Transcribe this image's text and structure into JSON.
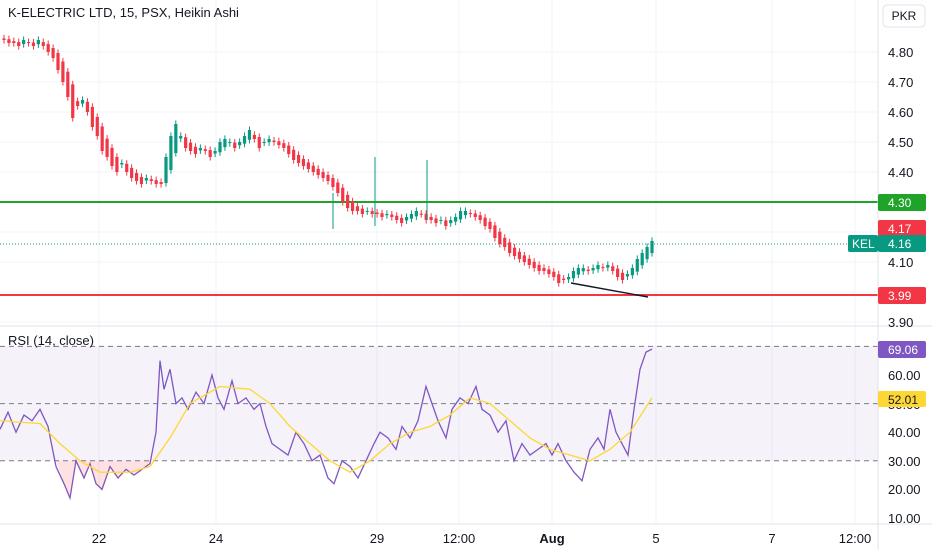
{
  "header": {
    "title": "K-ELECTRIC LTD, 15, PSX, Heikin Ashi",
    "currency": "PKR"
  },
  "price_axis": {
    "ticks": [
      "4.80",
      "4.70",
      "4.60",
      "4.50",
      "4.40",
      "4.10",
      "3.90"
    ]
  },
  "tags": {
    "resistance": "4.30",
    "last_close": "4.17",
    "symbol": "KEL",
    "symbol_price": "4.16",
    "support": "3.99"
  },
  "rsi_panel": {
    "label": "RSI (14, close)",
    "ticks": [
      "60.00",
      "40.00",
      "30.00",
      "20.00",
      "10.00"
    ],
    "rsi_tag": "69.06",
    "ma_tag": "52.01",
    "ma_tag_hidden_tick": "50.00"
  },
  "time_axis": {
    "ticks": [
      "22",
      "24",
      "29",
      "12:00",
      "Aug",
      "5",
      "7",
      "12:00"
    ]
  },
  "colors": {
    "up": "#089981",
    "down": "#f23645",
    "resistance": "#1fa329",
    "support": "#f23645",
    "rsi_line": "#7e57c2",
    "rsi_ma": "#fdd835",
    "rsi_band": "#7e57c2",
    "symbol_tag": "#089981"
  },
  "chart_data": [
    {
      "type": "candlestick",
      "title": "K-ELECTRIC LTD, 15, PSX, Heikin Ashi",
      "x_ticks": [
        "22",
        "24",
        "29",
        "12:00",
        "Aug",
        "5",
        "7",
        "12:00"
      ],
      "ylim": [
        3.86,
        4.88
      ],
      "y_ticks": [
        4.8,
        4.7,
        4.6,
        4.5,
        4.4,
        4.3,
        4.2,
        4.1,
        4.0,
        3.9
      ],
      "horizontal_lines": [
        {
          "value": 4.3,
          "label": "4.30",
          "color": "#1fa329"
        },
        {
          "value": 3.99,
          "label": "3.99",
          "color": "#f23645"
        }
      ],
      "last_price": 4.16,
      "series": [
        {
          "values_close": [
            4.84,
            4.83,
            4.83,
            4.82,
            4.84,
            4.83,
            4.82,
            4.84,
            4.82,
            4.8,
            4.78,
            4.74,
            4.7,
            4.65,
            4.58,
            4.62,
            4.64,
            4.6,
            4.55,
            4.52,
            4.47,
            4.45,
            4.42,
            4.4,
            4.43,
            4.4,
            4.38,
            4.37,
            4.36,
            4.38,
            4.37,
            4.36,
            4.36,
            4.45,
            4.52,
            4.56,
            4.52,
            4.48,
            4.47,
            4.46,
            4.48,
            4.47,
            4.45,
            4.47,
            4.5,
            4.51,
            4.5,
            4.48,
            4.5,
            4.52,
            4.54,
            4.51,
            4.48,
            4.5,
            4.51,
            4.5,
            4.49,
            4.48,
            4.46,
            4.44,
            4.43,
            4.42,
            4.41,
            4.4,
            4.39,
            4.38,
            4.37,
            4.35,
            4.33,
            4.3,
            4.28,
            4.27,
            4.27,
            4.26,
            4.27,
            4.26,
            4.26,
            4.25,
            4.26,
            4.25,
            4.24,
            4.23,
            4.25,
            4.26,
            4.27,
            4.26,
            4.24,
            4.24,
            4.23,
            4.24,
            4.22,
            4.24,
            4.25,
            4.27,
            4.27,
            4.26,
            4.25,
            4.24,
            4.22,
            4.21,
            4.18,
            4.16,
            4.15,
            4.13,
            4.12,
            4.11,
            4.1,
            4.09,
            4.08,
            4.07,
            4.07,
            4.06,
            4.05,
            4.03,
            4.04,
            4.05,
            4.07,
            4.08,
            4.08,
            4.07,
            4.08,
            4.09,
            4.08,
            4.09,
            4.07,
            4.05,
            4.04,
            4.06,
            4.08,
            4.11,
            4.13,
            4.15,
            4.17
          ]
        }
      ]
    },
    {
      "type": "line",
      "title": "RSI (14, close)",
      "ylim": [
        5,
        72
      ],
      "y_ticks": [
        60,
        50,
        40,
        30,
        20,
        10
      ],
      "band": [
        30,
        70
      ],
      "series": [
        {
          "name": "RSI",
          "last_value": 69.06
        },
        {
          "name": "RSI MA",
          "last_value": 52.01
        }
      ]
    }
  ]
}
